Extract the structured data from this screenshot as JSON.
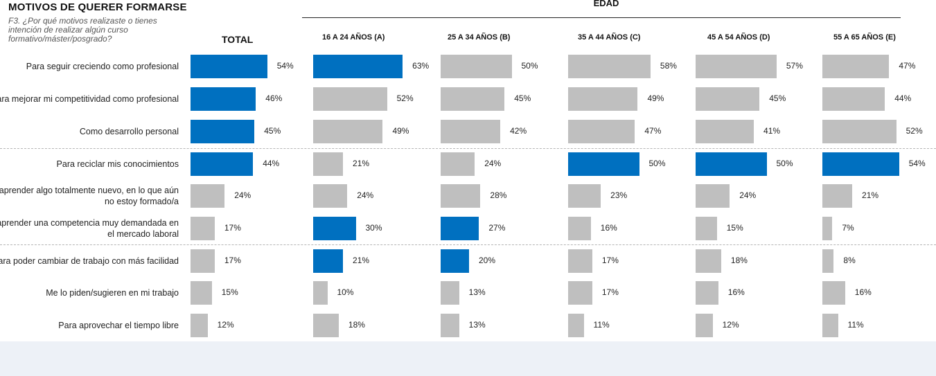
{
  "header": {
    "title": "MOTIVOS DE QUERER FORMARSE",
    "subtitle": "F3. ¿Por qué motivos realizaste o tienes intención de realizar algún curso formativo/máster/posgrado?",
    "group_label": "EDAD"
  },
  "colors": {
    "highlight": "#0070c0",
    "default": "#bfbfbf",
    "footer": "#edf1f7"
  },
  "chart_data": {
    "type": "bar",
    "orientation": "horizontal",
    "categories": [
      "Para seguir creciendo como profesional",
      "Para mejorar mi competitividad como profesional",
      "Como desarrollo personal",
      "Para reciclar mis conocimientos",
      "Para aprender algo totalmente nuevo, en lo que aún no estoy formado/a",
      "Para aprender una competencia muy demandada en el mercado laboral",
      "Para poder cambiar de trabajo con más facilidad",
      "Me lo piden/sugieren en mi trabajo",
      "Para aprovechar el tiempo libre"
    ],
    "series": [
      {
        "name": "TOTAL",
        "values": [
          54,
          46,
          45,
          44,
          24,
          17,
          17,
          15,
          12
        ],
        "highlight": [
          true,
          true,
          true,
          true,
          false,
          false,
          false,
          false,
          false
        ]
      },
      {
        "name": "16 A 24 AÑOS (A)",
        "values": [
          63,
          52,
          49,
          21,
          24,
          30,
          21,
          10,
          18
        ],
        "highlight": [
          true,
          false,
          false,
          false,
          false,
          true,
          true,
          false,
          false
        ]
      },
      {
        "name": "25 A 34 AÑOS (B)",
        "values": [
          50,
          45,
          42,
          24,
          28,
          27,
          20,
          13,
          13
        ],
        "highlight": [
          false,
          false,
          false,
          false,
          false,
          true,
          true,
          false,
          false
        ]
      },
      {
        "name": "35 A 44 AÑOS (C)",
        "values": [
          58,
          49,
          47,
          50,
          23,
          16,
          17,
          17,
          11
        ],
        "highlight": [
          false,
          false,
          false,
          true,
          false,
          false,
          false,
          false,
          false
        ]
      },
      {
        "name": "45 A 54 AÑOS (D)",
        "values": [
          57,
          45,
          41,
          50,
          24,
          15,
          18,
          16,
          12
        ],
        "highlight": [
          false,
          false,
          false,
          true,
          false,
          false,
          false,
          false,
          false
        ]
      },
      {
        "name": "55 A 65 AÑOS (E)",
        "values": [
          47,
          44,
          52,
          54,
          21,
          7,
          8,
          16,
          11
        ],
        "highlight": [
          false,
          false,
          false,
          true,
          false,
          false,
          false,
          false,
          false
        ]
      }
    ],
    "value_suffix": "%",
    "row_groups": [
      [
        0,
        2
      ],
      [
        3,
        5
      ],
      [
        6,
        8
      ]
    ]
  }
}
